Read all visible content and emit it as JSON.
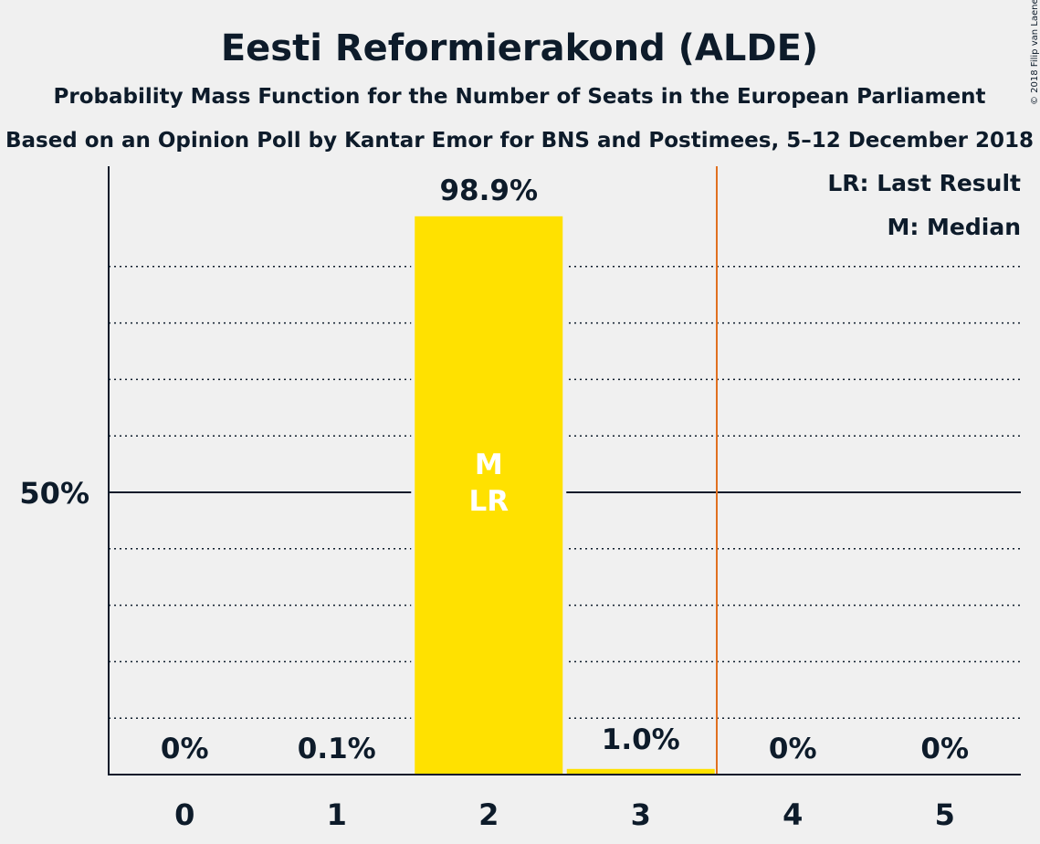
{
  "title": "Eesti Reformierakond (ALDE)",
  "subtitle1": "Probability Mass Function for the Number of Seats in the European Parliament",
  "subtitle2": "Based on an Opinion Poll by Kantar Emor for BNS and Postimees, 5–12 December 2018",
  "copyright": "© 2018 Filip van Laenen",
  "legend": {
    "lr": "LR: Last Result",
    "m": "M: Median"
  },
  "colors": {
    "bar": "#ffe100",
    "last_result_line": "#e07020",
    "text": "#0d1b2a",
    "background": "#f0f0f0"
  },
  "chart_data": {
    "type": "bar",
    "categories": [
      "0",
      "1",
      "2",
      "3",
      "4",
      "5"
    ],
    "values": [
      0,
      0.1,
      98.9,
      1.0,
      0,
      0
    ],
    "value_labels": [
      "0%",
      "0.1%",
      "98.9%",
      "1.0%",
      "0%",
      "0%"
    ],
    "ylim": [
      0,
      110
    ],
    "y_ticks": [
      {
        "value": 50,
        "label": "50%"
      }
    ],
    "gridlines_minor_step": 10,
    "median_seat": 2,
    "last_result_seat": 2,
    "bar_markers": [
      "M",
      "LR"
    ],
    "last_result_line_after_seat": 3,
    "grid": true,
    "legend_position": "top-right"
  }
}
